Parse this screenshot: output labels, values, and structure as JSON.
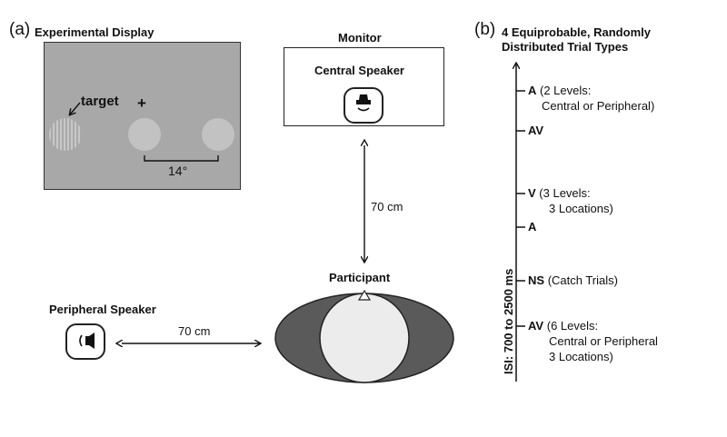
{
  "panel_a": {
    "label": "(a)",
    "title": "Experimental Display",
    "target_label": "target",
    "fixation": "+",
    "eccentricity": "14°",
    "monitor_title": "Monitor",
    "central_speaker": "Central Speaker",
    "distance_vertical": "70 cm",
    "participant": "Participant",
    "peripheral_speaker": "Peripheral Speaker",
    "distance_horizontal": "70 cm"
  },
  "panel_b": {
    "label": "(b)",
    "title_line1": "4 Equiprobable, Randomly",
    "title_line2": "Distributed Trial Types",
    "axis_label": "ISI: 700 to 2500 ms",
    "trials": [
      {
        "code": "A",
        "detail_line1": "(2 Levels:",
        "detail_line2": "Central or Peripheral)"
      },
      {
        "code": "AV",
        "detail_line1": "",
        "detail_line2": ""
      },
      {
        "code": "V",
        "detail_line1": "(3 Levels:",
        "detail_line2": "3 Locations)"
      },
      {
        "code": "A",
        "detail_line1": "",
        "detail_line2": ""
      },
      {
        "code": "NS",
        "detail_line1": "(Catch Trials)",
        "detail_line2": ""
      },
      {
        "code": "AV",
        "detail_line1": "(6 Levels:",
        "detail_line2": "Central or Peripheral",
        "detail_line3": "3 Locations)"
      }
    ]
  },
  "colors": {
    "screen_gray": "#a8a8a8",
    "disc_gray": "#c2c2c2",
    "head_dark": "#5a5a5a",
    "head_light": "#ececec"
  }
}
